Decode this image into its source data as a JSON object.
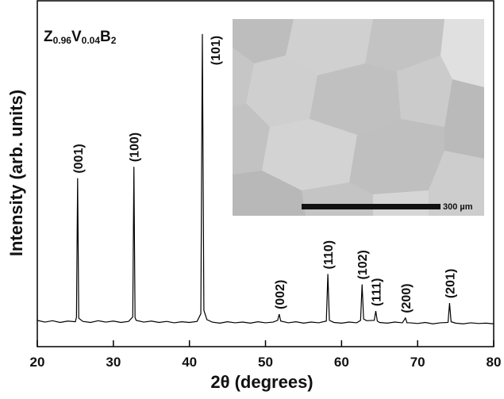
{
  "chart_data": {
    "type": "line",
    "title_parts": [
      "Z",
      "0.96",
      "V",
      "0.04",
      "B",
      "2"
    ],
    "x_label": "2θ (degrees)",
    "y_label": "Intensity (arb. units)",
    "inset_scale_label": "300 µm",
    "xlim": [
      20,
      80
    ],
    "xticks": [
      20,
      30,
      40,
      50,
      60,
      70,
      80
    ],
    "ylim": [
      0,
      100
    ],
    "color": "#000000",
    "x": [
      20,
      21,
      22,
      23,
      24,
      25,
      25.15,
      25.3,
      25.45,
      26,
      27,
      28,
      29,
      30,
      31,
      32,
      32.55,
      32.7,
      32.85,
      33,
      34,
      35,
      36,
      37,
      38,
      39,
      40,
      41,
      41.5,
      41.7,
      41.9,
      42.3,
      43,
      44,
      45,
      46,
      47,
      48,
      49,
      50,
      51,
      51.6,
      51.8,
      52,
      53,
      54,
      55,
      56,
      57,
      58,
      58.2,
      58.4,
      59,
      60,
      61,
      62,
      62.5,
      62.7,
      62.9,
      63.3,
      64.3,
      64.5,
      64.7,
      65,
      66,
      67,
      68,
      68.4,
      68.6,
      69,
      70,
      71,
      72,
      73,
      74,
      74.2,
      74.4,
      75,
      76,
      77,
      78,
      79,
      80
    ],
    "values": [
      7.6,
      7.1,
      7.5,
      7.0,
      7.4,
      7.2,
      8.5,
      48.7,
      8.2,
      7.3,
      7.0,
      7.5,
      7.1,
      7.4,
      7.0,
      7.3,
      8.6,
      52,
      8.4,
      7.6,
      7.1,
      7.4,
      7.0,
      7.3,
      6.9,
      7.2,
      7.0,
      7.3,
      9.5,
      90.4,
      10.5,
      7.8,
      7.1,
      6.8,
      7.2,
      6.9,
      7.1,
      6.8,
      7.2,
      6.9,
      7.1,
      7.6,
      9.4,
      7.4,
      6.9,
      7.2,
      6.8,
      7.1,
      6.9,
      7.4,
      21,
      7.6,
      7.0,
      6.8,
      7.1,
      6.9,
      7.6,
      18,
      8.0,
      7.5,
      7.6,
      10.3,
      7.4,
      7.0,
      6.8,
      7.1,
      6.9,
      8.3,
      6.9,
      6.9,
      6.7,
      7.0,
      6.6,
      6.9,
      7.0,
      12.6,
      7.2,
      6.8,
      6.6,
      6.9,
      6.7,
      6.8,
      6.6
    ],
    "peak_labels": [
      {
        "text": "(001)",
        "x": 25.3
      },
      {
        "text": "(100)",
        "x": 32.7
      },
      {
        "text": "(101)",
        "x": 41.7
      },
      {
        "text": "(002)",
        "x": 51.8
      },
      {
        "text": "(110)",
        "x": 58.2
      },
      {
        "text": "(102)",
        "x": 62.7
      },
      {
        "text": "(111)",
        "x": 64.5
      },
      {
        "text": "(200)",
        "x": 68.4
      },
      {
        "text": "(201)",
        "x": 74.2
      }
    ]
  }
}
